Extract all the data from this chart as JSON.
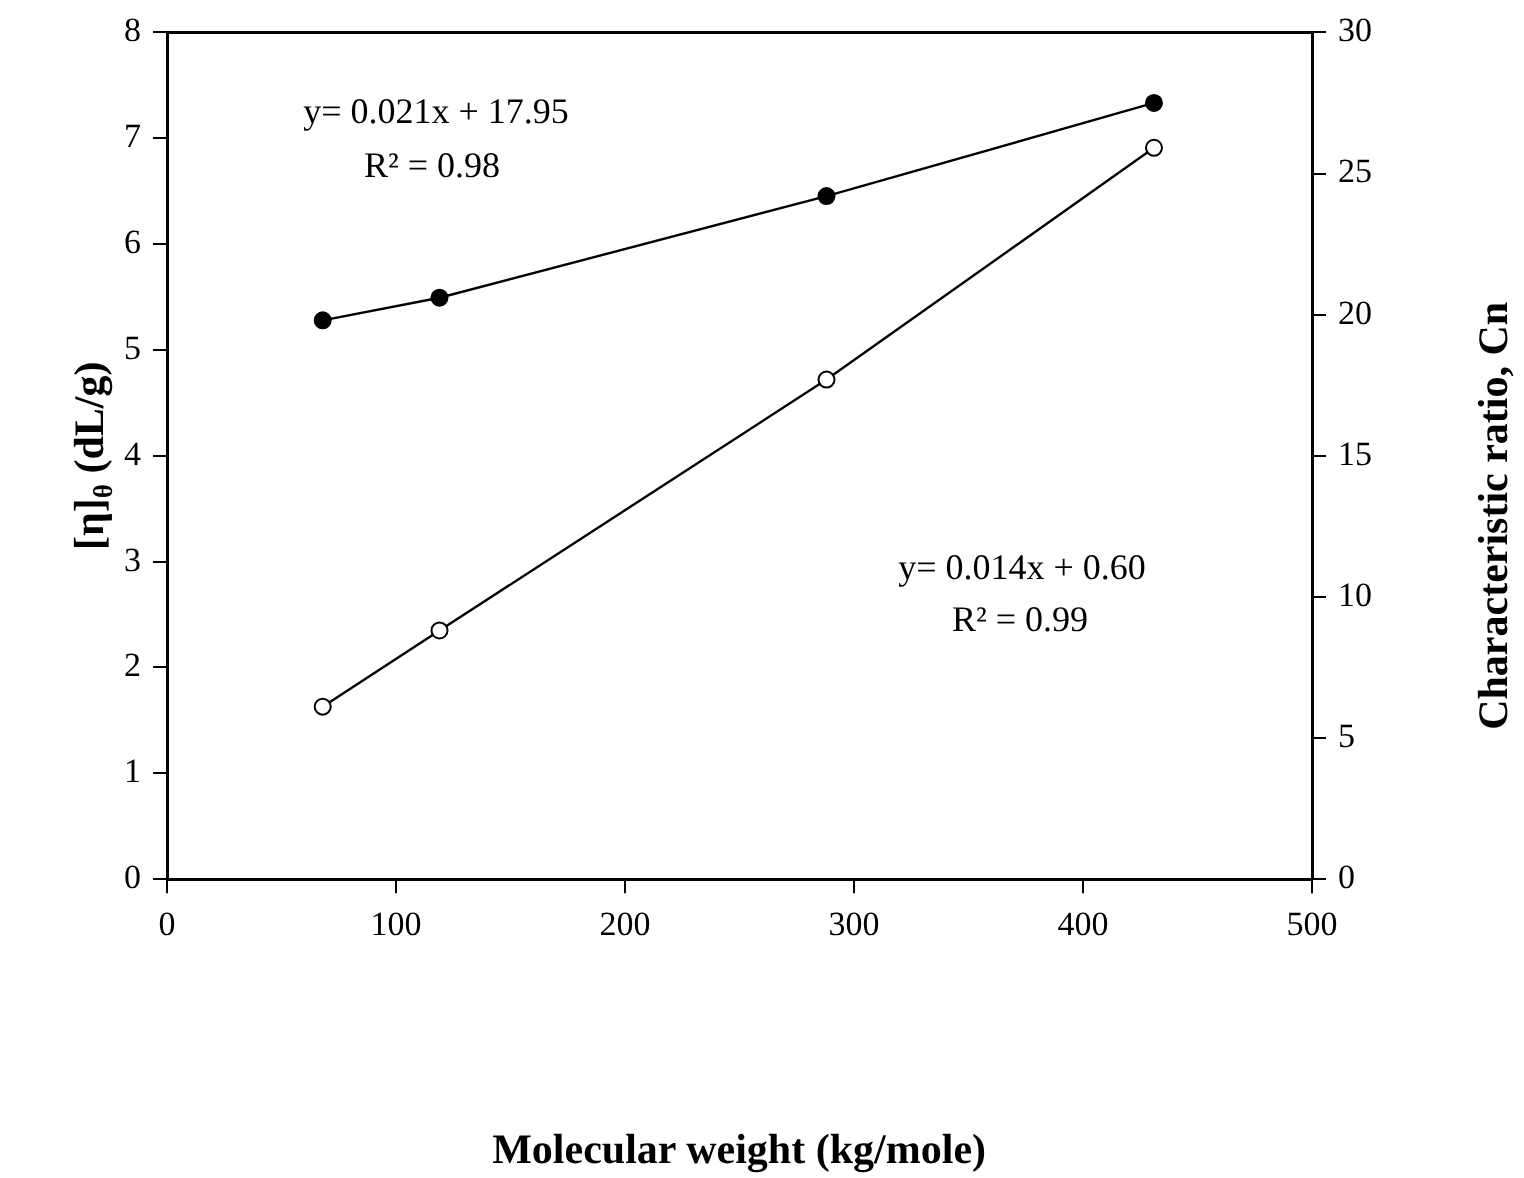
{
  "chart_data": {
    "type": "line",
    "xlabel": "Molecular weight (kg/mole)",
    "ylabel": "[η]$_{θ}$ (dL/g)",
    "y2label": "Characteristic ratio, Cn",
    "x": [
      68,
      119,
      288,
      431
    ],
    "series": [
      {
        "color": "#000000",
        "values": [
          1.63,
          2.35,
          4.72,
          6.91
        ],
        "marker": "circle_open"
      },
      {
        "color": "#000000",
        "values": [
          19.8,
          20.6,
          24.2,
          27.5
        ],
        "axis": "y2",
        "marker": "circle"
      }
    ],
    "xlim": [
      0,
      500
    ],
    "xticks": [
      0,
      100,
      200,
      300,
      400,
      500
    ],
    "ylim": [
      0,
      8
    ],
    "yticks": [
      0,
      1,
      2,
      3,
      4,
      5,
      6,
      7,
      8
    ],
    "y2lim": [
      0,
      30
    ],
    "y2ticks": [
      0,
      5,
      10,
      15,
      20,
      25,
      30
    ],
    "grid": false,
    "legend": false,
    "annotations": [
      "y= 0.021x + 17.95",
      "R² = 0.98",
      "y= 0.014x + 0.60",
      "R² = 0.99"
    ]
  }
}
